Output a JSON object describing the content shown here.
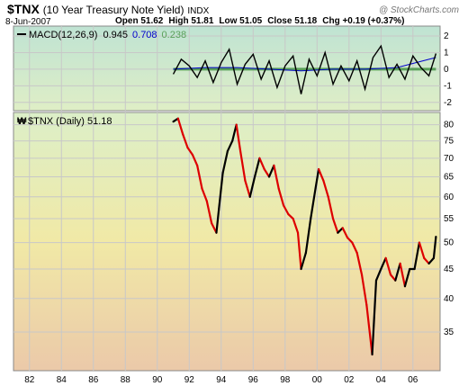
{
  "header": {
    "symbol": "$TNX",
    "description": "(10 Year Treasury Note Yield)",
    "exchange": "INDX",
    "copyright": "@ StockCharts.com",
    "date": "8-Jun-2007",
    "open": "Open 51.62",
    "high": "High 51.81",
    "low": "Low 51.05",
    "close": "Close 51.18",
    "change": "Chg +0.19 (+0.37%)",
    "change_color": "#000000"
  },
  "colors": {
    "macd_bg_top": "#bfe3d3",
    "macd_bg_bottom": "#dfeec6",
    "price_bg_top": "#dcefc8",
    "price_bg_mid": "#f1e9a6",
    "price_bg_bottom": "#ebc9a9",
    "macd_line": "#000000",
    "signal_line": "#0000cc",
    "histogram": "#5aa05a",
    "price_up": "#000000",
    "price_down": "#dd0000",
    "grid": "#c8c8c8"
  },
  "chart_data": [
    {
      "type": "line",
      "title": "MACD(12,26,9)",
      "legend": {
        "label": "MACD(12,26,9)",
        "macd": "0.945",
        "signal": "0.708",
        "histogram": "0.238"
      },
      "y_ticks": [
        "2",
        "1",
        "0",
        "-1",
        "-2"
      ],
      "ylim": [
        -2.5,
        2.6
      ],
      "grid": true,
      "series": [
        {
          "name": "MACD",
          "x": [
            1991.0,
            1991.5,
            1992.0,
            1992.5,
            1993.0,
            1993.5,
            1994.0,
            1994.5,
            1995.0,
            1995.5,
            1996.0,
            1996.5,
            1997.0,
            1997.5,
            1998.0,
            1998.5,
            1999.0,
            1999.5,
            2000.0,
            2000.5,
            2001.0,
            2001.5,
            2002.0,
            2002.5,
            2003.0,
            2003.5,
            2004.0,
            2004.5,
            2005.0,
            2005.5,
            2006.0,
            2006.5,
            2007.0,
            2007.44
          ],
          "values": [
            -0.3,
            0.6,
            0.2,
            -0.5,
            0.5,
            -0.8,
            0.4,
            1.2,
            -0.9,
            0.3,
            0.9,
            -0.6,
            0.5,
            -1.1,
            0.2,
            0.8,
            -1.5,
            0.6,
            -0.4,
            1.0,
            -0.9,
            0.2,
            -0.7,
            0.5,
            -1.2,
            0.7,
            1.4,
            -0.5,
            0.3,
            -0.6,
            0.8,
            0.1,
            -0.4,
            0.945
          ]
        },
        {
          "name": "Signal",
          "x": [
            1991.0,
            1993.0,
            1995.0,
            1997.0,
            1999.0,
            2001.0,
            2003.0,
            2005.0,
            2007.44
          ],
          "values": [
            0.0,
            0.1,
            0.1,
            0.0,
            -0.1,
            0.0,
            0.0,
            0.1,
            0.708
          ]
        }
      ]
    },
    {
      "type": "line",
      "title": "$TNX (Daily) 51.18",
      "legend": {
        "label": "$TNX (Daily) 51.18"
      },
      "x_ticks": [
        "82",
        "84",
        "86",
        "88",
        "90",
        "92",
        "94",
        "96",
        "98",
        "00",
        "02",
        "04",
        "06"
      ],
      "x_tick_values": [
        1982,
        1984,
        1986,
        1988,
        1990,
        1992,
        1994,
        1996,
        1998,
        2000,
        2002,
        2004,
        2006
      ],
      "y_ticks": [
        "80",
        "75",
        "70",
        "65",
        "60",
        "55",
        "50",
        "45",
        "40",
        "35"
      ],
      "y_tick_values": [
        80,
        75,
        70,
        65,
        60,
        55,
        50,
        45,
        40,
        35
      ],
      "log_scale": true,
      "ylim": [
        30,
        84
      ],
      "xlim": [
        1981.0,
        2007.7
      ],
      "grid": true,
      "series": [
        {
          "name": "$TNX",
          "x": [
            1991.0,
            1991.3,
            1991.6,
            1991.9,
            1992.2,
            1992.5,
            1992.8,
            1993.1,
            1993.4,
            1993.7,
            1993.85,
            1994.1,
            1994.4,
            1994.7,
            1994.95,
            1995.2,
            1995.5,
            1995.8,
            1996.1,
            1996.4,
            1996.7,
            1997.0,
            1997.3,
            1997.6,
            1997.9,
            1998.2,
            1998.5,
            1998.8,
            1999.0,
            1999.3,
            1999.6,
            1999.9,
            2000.1,
            2000.4,
            2000.7,
            2001.0,
            2001.3,
            2001.6,
            2001.9,
            2002.2,
            2002.5,
            2002.8,
            2003.1,
            2003.45,
            2003.7,
            2004.0,
            2004.3,
            2004.6,
            2004.9,
            2005.2,
            2005.5,
            2005.8,
            2006.1,
            2006.4,
            2006.7,
            2007.0,
            2007.3,
            2007.44
          ],
          "values": [
            81,
            82,
            77,
            73,
            71,
            68,
            62,
            59,
            54,
            52,
            57,
            66,
            72,
            75,
            80,
            72,
            64,
            60,
            65,
            70,
            67,
            65,
            68,
            62,
            58,
            56,
            55,
            52,
            45,
            48,
            55,
            62,
            67,
            64,
            60,
            55,
            52,
            53,
            51,
            50,
            48,
            44,
            39,
            32,
            43,
            45,
            47,
            44,
            43,
            46,
            42,
            45,
            45,
            50,
            47,
            46,
            47,
            51.18
          ]
        }
      ]
    }
  ]
}
